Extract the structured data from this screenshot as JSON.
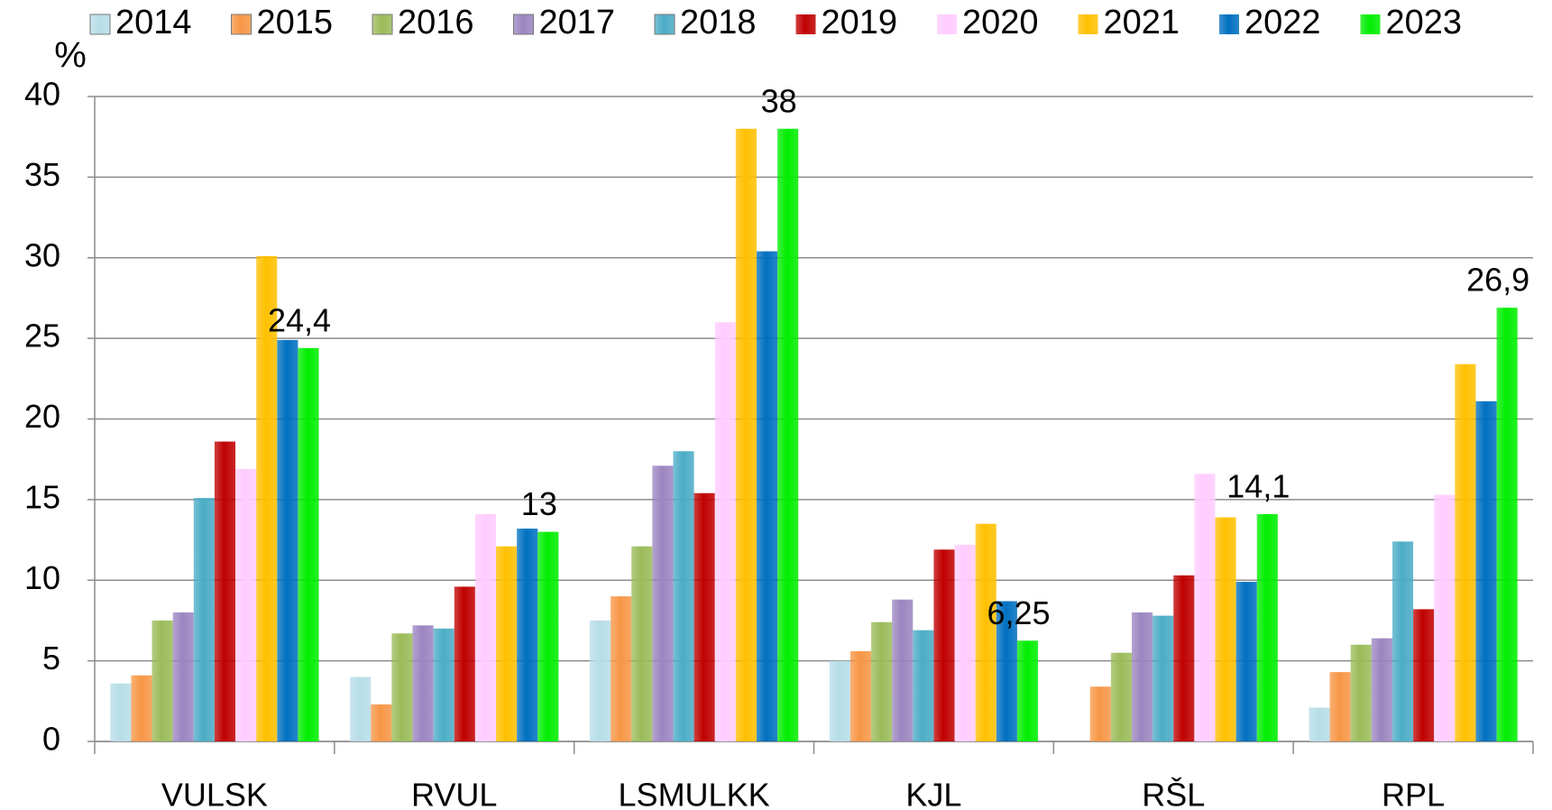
{
  "chart_data": {
    "type": "bar",
    "y_label": "%",
    "categories": [
      "VULSK",
      "RVUL",
      "LSMULKK",
      "KJL",
      "RŠL",
      "RPL"
    ],
    "series": [
      {
        "name": "2014",
        "color": "#b7dde8",
        "values": [
          3.6,
          4.0,
          7.5,
          5.0,
          0,
          2.1
        ]
      },
      {
        "name": "2015",
        "color": "#f79646",
        "values": [
          4.1,
          2.3,
          9.0,
          5.6,
          3.4,
          4.3
        ]
      },
      {
        "name": "2016",
        "color": "#9bbb59",
        "values": [
          7.5,
          6.7,
          12.1,
          7.4,
          5.5,
          6.0
        ]
      },
      {
        "name": "2017",
        "color": "#9c85c0",
        "values": [
          8.0,
          7.2,
          17.1,
          8.8,
          8.0,
          6.4
        ]
      },
      {
        "name": "2018",
        "color": "#4bacc6",
        "values": [
          15.1,
          7.0,
          18.0,
          6.9,
          7.8,
          12.4
        ]
      },
      {
        "name": "2019",
        "color": "#c00000",
        "values": [
          18.6,
          9.6,
          15.4,
          11.9,
          10.3,
          8.2
        ]
      },
      {
        "name": "2020",
        "color": "#ffccff",
        "values": [
          16.9,
          14.1,
          26.0,
          12.2,
          16.6,
          15.3
        ]
      },
      {
        "name": "2021",
        "color": "#ffc000",
        "values": [
          30.1,
          12.1,
          38,
          13.5,
          13.9,
          23.4
        ]
      },
      {
        "name": "2022",
        "color": "#0070c0",
        "values": [
          24.9,
          13.2,
          30.4,
          8.7,
          9.9,
          21.1
        ]
      },
      {
        "name": "2023",
        "color": "#00ee00",
        "values": [
          24.4,
          13,
          38,
          6.25,
          14.1,
          26.9
        ],
        "value_labels": [
          "24,4",
          "13",
          "38",
          "6,25",
          "14,1",
          "26,9"
        ]
      }
    ],
    "ylim": [
      0,
      40
    ],
    "yticks": [
      0,
      5,
      10,
      15,
      20,
      25,
      30,
      35,
      40
    ],
    "grid": true,
    "legend": "top"
  }
}
